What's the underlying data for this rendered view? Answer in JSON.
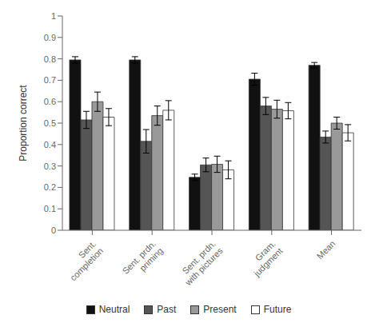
{
  "chart_data": {
    "type": "bar",
    "categories": [
      "Sent.\ncompletion",
      "Sent. prdn.\npriming",
      "Sent. prdn.\nwith pictures",
      "Gram.\njudgment",
      "Mean"
    ],
    "series": [
      {
        "name": "Neutral",
        "color": "#111111",
        "values": [
          0.795,
          0.795,
          0.247,
          0.705,
          0.77
        ],
        "errors": [
          0.015,
          0.015,
          0.015,
          0.028,
          0.013
        ]
      },
      {
        "name": "Past",
        "color": "#555555",
        "values": [
          0.515,
          0.415,
          0.305,
          0.58,
          0.435
        ],
        "errors": [
          0.04,
          0.055,
          0.032,
          0.04,
          0.028
        ]
      },
      {
        "name": "Present",
        "color": "#999999",
        "values": [
          0.6,
          0.535,
          0.308,
          0.565,
          0.5
        ],
        "errors": [
          0.045,
          0.045,
          0.038,
          0.042,
          0.028
        ]
      },
      {
        "name": "Future",
        "color": "#ffffff",
        "values": [
          0.528,
          0.56,
          0.282,
          0.558,
          0.455
        ],
        "errors": [
          0.04,
          0.045,
          0.042,
          0.038,
          0.038
        ]
      }
    ],
    "ylabel": "Proportion correct",
    "ylim": [
      0,
      1.0
    ],
    "yticks": [
      0,
      0.1,
      0.2,
      0.3,
      0.4,
      0.5,
      0.6,
      0.7,
      0.8,
      0.9,
      1
    ],
    "grid": false,
    "legend": "bottom"
  }
}
